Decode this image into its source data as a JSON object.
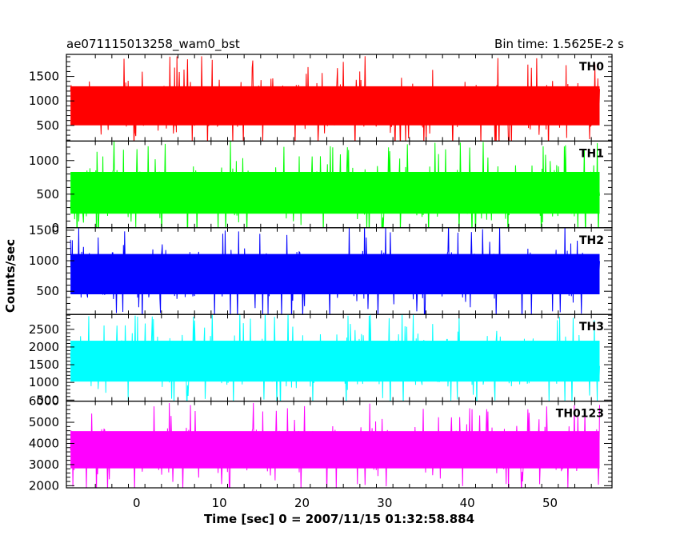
{
  "chart_data": {
    "type": "line",
    "title_left": "ae071115013258_wam0_bst",
    "title_right": "Bin time: 1.5625E-2 s",
    "xlabel": "Time [sec] 0 = 2007/11/15 01:32:58.884",
    "ylabel": "Counts/sec",
    "xlim": [
      -8.5,
      57.5
    ],
    "x_data_range": [
      -8.0,
      56.0
    ],
    "x_ticks": [
      0,
      10,
      20,
      30,
      40,
      50
    ],
    "grid": false,
    "panels": [
      {
        "name": "TH0",
        "color": "#ff0000",
        "ylim": [
          180,
          1950
        ],
        "y_ticks": [
          500,
          1000,
          1500
        ],
        "mean": 900,
        "low": 300,
        "high": 1750
      },
      {
        "name": "TH1",
        "color": "#00ff00",
        "ylim": [
          0,
          1290
        ],
        "y_ticks": [
          0,
          500,
          1000
        ],
        "mean": 520,
        "low": 70,
        "high": 1200
      },
      {
        "name": "TH2",
        "color": "#0000ff",
        "ylim": [
          120,
          1540
        ],
        "y_ticks": [
          500,
          1000,
          1500
        ],
        "mean": 780,
        "low": 250,
        "high": 1450
      },
      {
        "name": "TH3",
        "color": "#00ffff",
        "ylim": [
          470,
          2920
        ],
        "y_ticks": [
          500,
          1000,
          1500,
          2000,
          2500
        ],
        "mean": 1600,
        "low": 700,
        "high": 2800
      },
      {
        "name": "TH0123",
        "color": "#ff00ff",
        "ylim": [
          1900,
          6000
        ],
        "y_ticks": [
          2000,
          3000,
          4000,
          5000,
          6000
        ],
        "mean": 3700,
        "low": 2300,
        "high": 5500
      }
    ]
  }
}
